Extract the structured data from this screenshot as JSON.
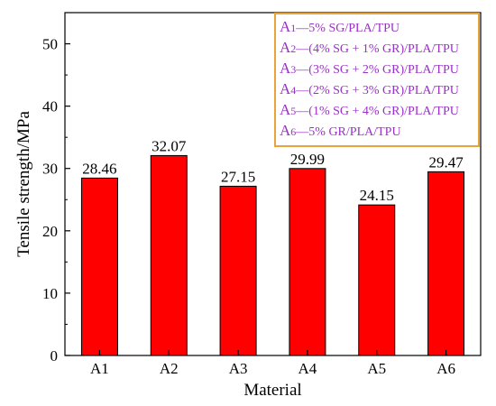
{
  "chart_data": {
    "type": "bar",
    "title": "",
    "xlabel": "Material",
    "ylabel": "Tensile strength/MPa",
    "categories": [
      "A1",
      "A2",
      "A3",
      "A4",
      "A5",
      "A6"
    ],
    "values": [
      28.46,
      32.07,
      27.15,
      29.99,
      24.15,
      29.47
    ],
    "data_labels": [
      "28.46",
      "32.07",
      "27.15",
      "29.99",
      "24.15",
      "29.47"
    ],
    "ylim": [
      0,
      55
    ],
    "yticks": [
      0,
      10,
      20,
      30,
      40,
      50
    ],
    "grid": false,
    "legend_position": "top-right",
    "bar_color": "#ff0000",
    "legend_border_color": "#e8a33a",
    "legend_text_color": "#9b30c8",
    "legend": [
      {
        "key": "A",
        "sub": "1",
        "text": "—5% SG/PLA/TPU"
      },
      {
        "key": "A",
        "sub": "2",
        "text": "—(4% SG + 1% GR)/PLA/TPU"
      },
      {
        "key": "A",
        "sub": "3",
        "text": "—(3% SG + 2% GR)/PLA/TPU"
      },
      {
        "key": "A",
        "sub": "4",
        "text": "—(2% SG + 3% GR)/PLA/TPU"
      },
      {
        "key": "A",
        "sub": "5",
        "text": "—(1% SG + 4% GR)/PLA/TPU"
      },
      {
        "key": "A",
        "sub": "6",
        "text": "—5% GR/PLA/TPU"
      }
    ]
  }
}
